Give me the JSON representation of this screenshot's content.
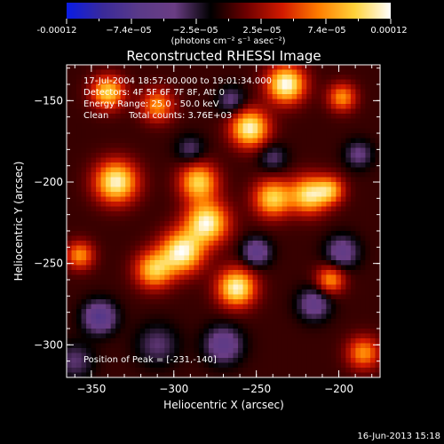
{
  "chart_data": {
    "type": "heatmap",
    "title": "Reconstructed RHESSI Image",
    "xlabel": "Heliocentric X (arcsec)",
    "ylabel": "Heliocentric Y (arcsec)",
    "xlim": [
      -365,
      -175
    ],
    "ylim": [
      -320,
      -128
    ],
    "x_ticks": [
      -350,
      -300,
      -250,
      -200
    ],
    "y_ticks": [
      -150,
      -200,
      -250,
      -300
    ],
    "colorbar": {
      "range": [
        -0.00012,
        0.00012
      ],
      "ticks": [
        "-0.00012",
        "−7.4e−05",
        "−2.5e−05",
        "2.5e−05",
        "7.4e−05",
        "0.00012"
      ],
      "unit": "(photons cm⁻² s⁻¹ asec⁻²)",
      "colors": [
        "#0a1ce6",
        "#3a2a9a",
        "#5a3a88",
        "#6a3d84",
        "#000000",
        "#6e0000",
        "#d21a00",
        "#ff7d00",
        "#ffd23a",
        "#ffffff"
      ]
    },
    "annotations": [
      "17-Jul-2004 18:57:00.000 to 19:01:34.000",
      "Detectors: 4F 5F 6F 7F 8F, Att 0",
      "Energy Range: 25.0 - 50.0 keV",
      "Clean",
      "Total counts: 3.76E+03",
      "Position of Peak = [-231,-140]"
    ],
    "peak": {
      "x": -231,
      "y": -140
    },
    "sources": [
      {
        "x": -232,
        "y": -140,
        "amp": 1.0,
        "sigma": 8
      },
      {
        "x": -340,
        "y": -145,
        "amp": 0.8,
        "sigma": 7
      },
      {
        "x": -310,
        "y": -153,
        "amp": 0.6,
        "sigma": 7
      },
      {
        "x": -198,
        "y": -148,
        "amp": 0.6,
        "sigma": 6
      },
      {
        "x": -254,
        "y": -167,
        "amp": 0.95,
        "sigma": 8
      },
      {
        "x": -335,
        "y": -200,
        "amp": 0.95,
        "sigma": 9
      },
      {
        "x": -285,
        "y": -200,
        "amp": 0.8,
        "sigma": 8
      },
      {
        "x": -280,
        "y": -225,
        "amp": 0.95,
        "sigma": 9
      },
      {
        "x": -240,
        "y": -210,
        "amp": 0.8,
        "sigma": 8
      },
      {
        "x": -218,
        "y": -208,
        "amp": 0.85,
        "sigma": 8
      },
      {
        "x": -205,
        "y": -205,
        "amp": 0.6,
        "sigma": 6
      },
      {
        "x": -295,
        "y": -243,
        "amp": 0.95,
        "sigma": 9
      },
      {
        "x": -312,
        "y": -254,
        "amp": 0.75,
        "sigma": 8
      },
      {
        "x": -262,
        "y": -265,
        "amp": 0.95,
        "sigma": 8
      },
      {
        "x": -357,
        "y": -245,
        "amp": 0.6,
        "sigma": 6
      },
      {
        "x": -205,
        "y": -260,
        "amp": 0.6,
        "sigma": 6
      },
      {
        "x": -185,
        "y": -305,
        "amp": 0.6,
        "sigma": 7
      },
      {
        "x": -345,
        "y": -283,
        "amp": -0.6,
        "sigma": 7
      },
      {
        "x": -270,
        "y": -300,
        "amp": -0.5,
        "sigma": 8
      },
      {
        "x": -250,
        "y": -243,
        "amp": -0.5,
        "sigma": 6
      },
      {
        "x": -198,
        "y": -243,
        "amp": -0.45,
        "sigma": 7
      },
      {
        "x": -215,
        "y": -275,
        "amp": -0.45,
        "sigma": 7
      },
      {
        "x": -310,
        "y": -300,
        "amp": -0.3,
        "sigma": 9
      },
      {
        "x": -265,
        "y": -150,
        "amp": -0.35,
        "sigma": 6
      },
      {
        "x": -290,
        "y": -180,
        "amp": -0.3,
        "sigma": 6
      },
      {
        "x": -188,
        "y": -183,
        "amp": -0.35,
        "sigma": 6
      },
      {
        "x": -240,
        "y": -185,
        "amp": -0.3,
        "sigma": 6
      },
      {
        "x": -360,
        "y": -310,
        "amp": -0.3,
        "sigma": 8
      }
    ]
  },
  "footer": {
    "date": "16-Jun-2013 15:18"
  }
}
